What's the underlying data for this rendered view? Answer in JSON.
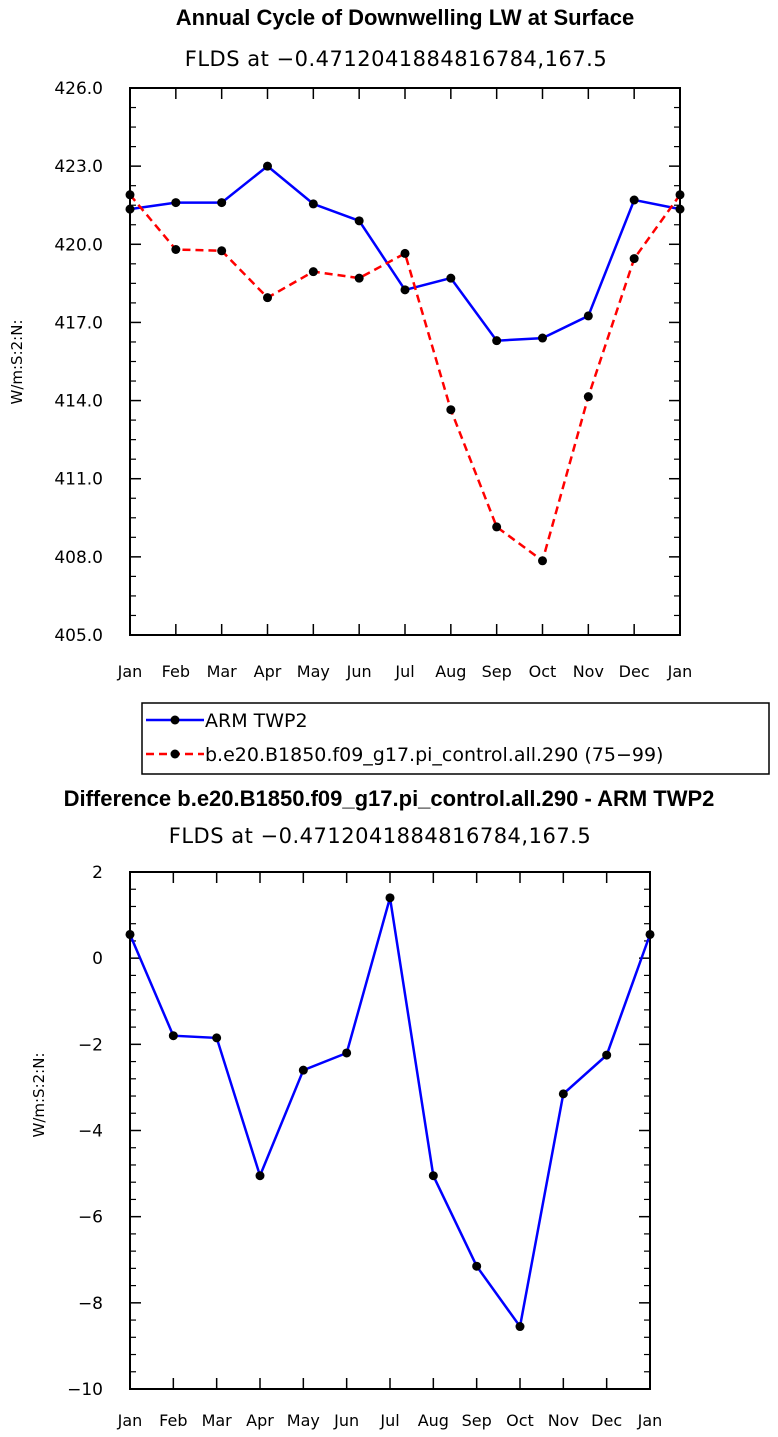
{
  "chart_data": [
    {
      "type": "line",
      "title": "Annual Cycle of Downwelling LW at Surface",
      "subtitle": "FLDS at −0.4712041884816784,167.5",
      "ylabel": "W/m:S:2:N:",
      "xlabel": "",
      "categories": [
        "Jan",
        "Feb",
        "Mar",
        "Apr",
        "May",
        "Jun",
        "Jul",
        "Aug",
        "Sep",
        "Oct",
        "Nov",
        "Dec",
        "Jan"
      ],
      "ylim": [
        405.0,
        426.0
      ],
      "yticks": [
        "405.0",
        "408.0",
        "411.0",
        "414.0",
        "417.0",
        "420.0",
        "423.0",
        "426.0"
      ],
      "grid": false,
      "legend_position": "bottom",
      "series": [
        {
          "name": "ARM TWP2",
          "color": "#0000ff",
          "style": "solid",
          "values": [
            421.35,
            421.6,
            421.6,
            423.0,
            421.55,
            420.9,
            418.25,
            418.7,
            416.3,
            416.4,
            417.25,
            421.7,
            421.35
          ]
        },
        {
          "name": "b.e20.B1850.f09_g17.pi_control.all.290 (75−99)",
          "color": "#ff0000",
          "style": "dashed",
          "values": [
            421.9,
            419.8,
            419.75,
            417.95,
            418.95,
            418.7,
            419.65,
            413.65,
            409.15,
            407.85,
            414.15,
            419.45,
            421.9
          ]
        }
      ]
    },
    {
      "type": "line",
      "title": "Difference b.e20.B1850.f09_g17.pi_control.all.290 - ARM TWP2",
      "subtitle": "FLDS at −0.4712041884816784,167.5",
      "ylabel": "W/m:S:2:N:",
      "xlabel": "",
      "categories": [
        "Jan",
        "Feb",
        "Mar",
        "Apr",
        "May",
        "Jun",
        "Jul",
        "Aug",
        "Sep",
        "Oct",
        "Nov",
        "Dec",
        "Jan"
      ],
      "ylim": [
        -10,
        2
      ],
      "yticks": [
        "−10",
        "−8",
        "−6",
        "−4",
        "−2",
        "0",
        "2"
      ],
      "grid": false,
      "series": [
        {
          "name": "",
          "color": "#0000ff",
          "style": "solid",
          "values": [
            0.55,
            -1.8,
            -1.85,
            -5.05,
            -2.6,
            -2.2,
            1.4,
            -5.05,
            -7.15,
            -8.55,
            -3.15,
            -2.25,
            0.55
          ]
        }
      ]
    }
  ]
}
